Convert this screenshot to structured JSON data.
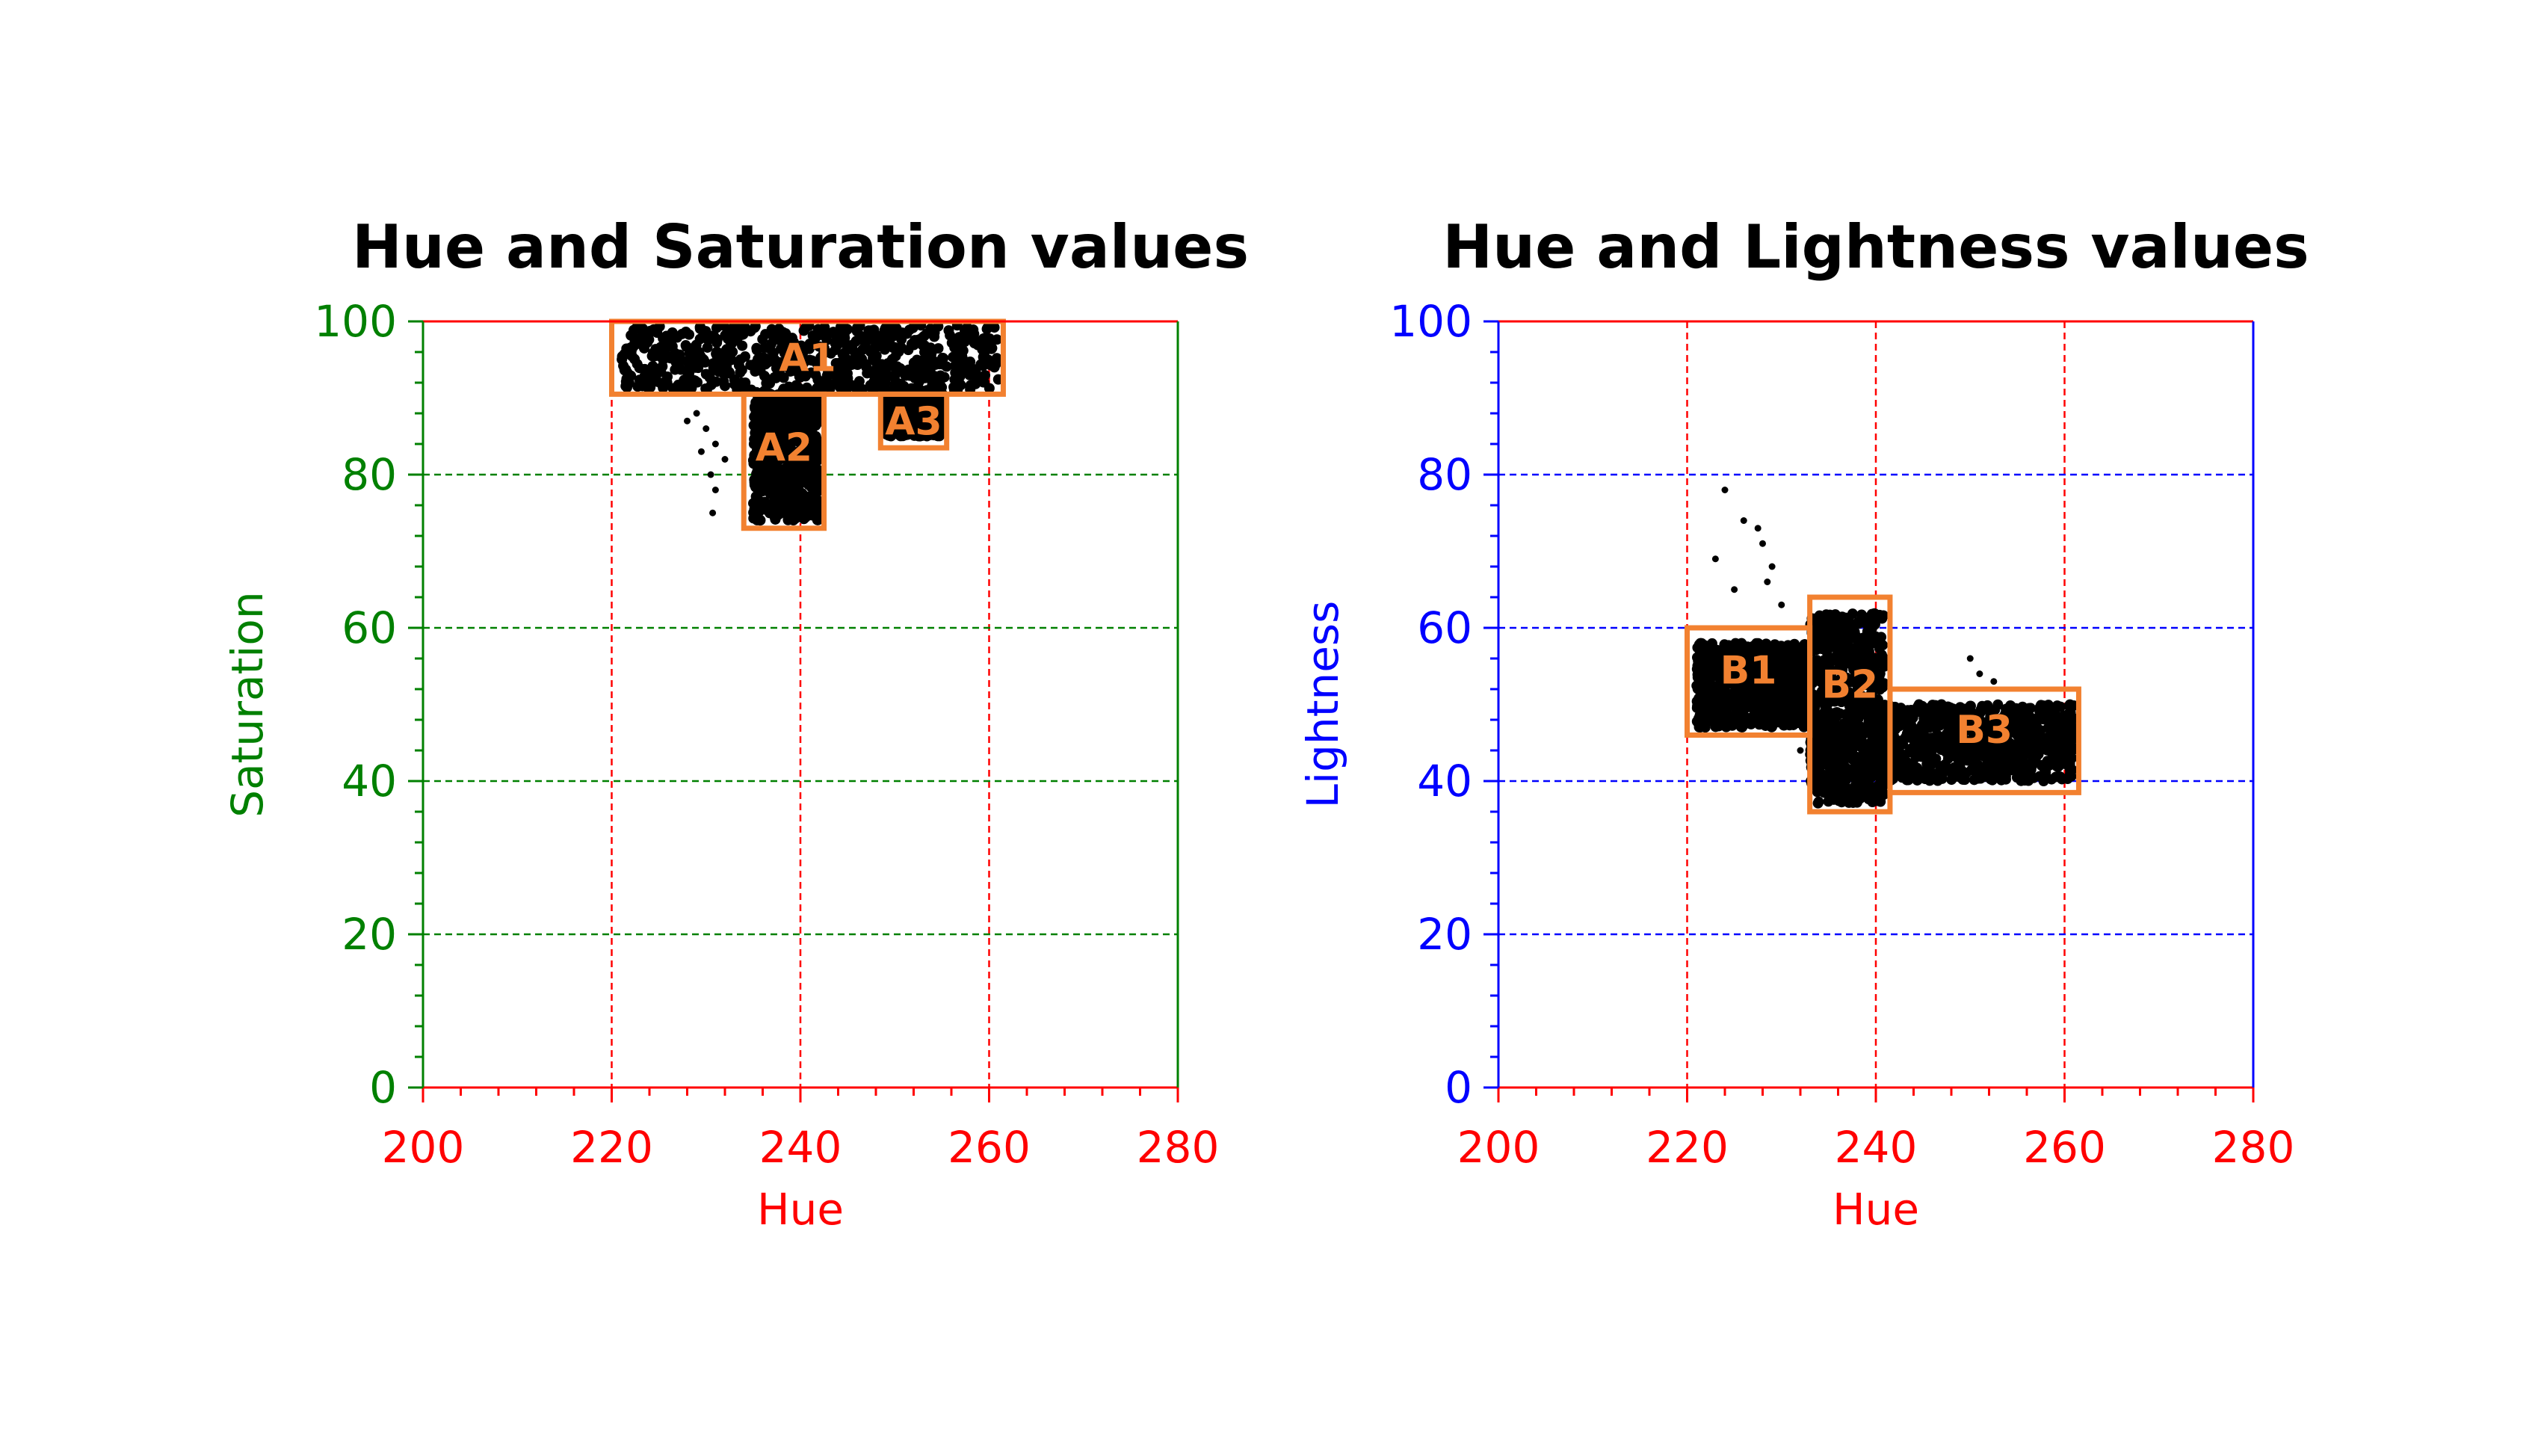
{
  "chart_data": [
    {
      "type": "scatter",
      "title": "Hue and Saturation values",
      "xlabel": "Hue",
      "ylabel": "Saturation",
      "xlim": [
        200,
        280
      ],
      "ylim": [
        0,
        100
      ],
      "xticks": [
        "200",
        "220",
        "240",
        "260",
        "280"
      ],
      "yticks": [
        "0",
        "20",
        "40",
        "60",
        "80",
        "100"
      ],
      "grid": true,
      "colors": {
        "x_axis": "#ff0000",
        "y_axis": "#008000",
        "points": "#000000",
        "boxes": "#f28130"
      },
      "clusters": [
        {
          "hue_range": [
            221,
            261
          ],
          "value_range": [
            91,
            99.5
          ]
        },
        {
          "hue_range": [
            235,
            242
          ],
          "value_range": [
            74,
            91
          ]
        },
        {
          "hue_range": [
            249,
            255
          ],
          "value_range": [
            85,
            91
          ]
        }
      ],
      "outliers": [
        {
          "hue": 229,
          "value": 88
        },
        {
          "hue": 230,
          "value": 86
        },
        {
          "hue": 231,
          "value": 84
        },
        {
          "hue": 230.5,
          "value": 80
        },
        {
          "hue": 231,
          "value": 78
        },
        {
          "hue": 230.7,
          "value": 75
        },
        {
          "hue": 228,
          "value": 87
        },
        {
          "hue": 232,
          "value": 82
        },
        {
          "hue": 229.5,
          "value": 83
        }
      ],
      "regions": [
        {
          "label": "A1",
          "hue": [
            220,
            261.5
          ],
          "value": [
            90.5,
            100
          ]
        },
        {
          "label": "A2",
          "hue": [
            234,
            242.5
          ],
          "value": [
            73,
            90.5
          ]
        },
        {
          "label": "A3",
          "hue": [
            248.5,
            255.5
          ],
          "value": [
            83.5,
            90.5
          ]
        }
      ]
    },
    {
      "type": "scatter",
      "title": "Hue and Lightness values",
      "xlabel": "Hue",
      "ylabel": "Lightness",
      "xlim": [
        200,
        280
      ],
      "ylim": [
        0,
        100
      ],
      "xticks": [
        "200",
        "220",
        "240",
        "260",
        "280"
      ],
      "yticks": [
        "0",
        "20",
        "40",
        "60",
        "80",
        "100"
      ],
      "grid": true,
      "colors": {
        "x_axis": "#ff0000",
        "y_axis": "#0000ff",
        "points": "#000000",
        "boxes": "#f28130"
      },
      "clusters": [
        {
          "hue_range": [
            221,
            233
          ],
          "value_range": [
            47,
            58
          ]
        },
        {
          "hue_range": [
            233,
            241
          ],
          "value_range": [
            37,
            62
          ]
        },
        {
          "hue_range": [
            241,
            261
          ],
          "value_range": [
            40,
            50
          ]
        }
      ],
      "outliers": [
        {
          "hue": 224,
          "value": 78
        },
        {
          "hue": 226,
          "value": 74
        },
        {
          "hue": 227.5,
          "value": 73
        },
        {
          "hue": 228,
          "value": 71
        },
        {
          "hue": 229,
          "value": 68
        },
        {
          "hue": 228.5,
          "value": 66
        },
        {
          "hue": 223,
          "value": 69
        },
        {
          "hue": 225,
          "value": 65
        },
        {
          "hue": 230,
          "value": 63
        },
        {
          "hue": 250,
          "value": 56
        },
        {
          "hue": 251,
          "value": 54
        },
        {
          "hue": 252.5,
          "value": 53
        },
        {
          "hue": 232,
          "value": 44
        }
      ],
      "regions": [
        {
          "label": "B1",
          "hue": [
            220,
            233
          ],
          "value": [
            46,
            60
          ]
        },
        {
          "label": "B2",
          "hue": [
            233,
            241.5
          ],
          "value": [
            36,
            64
          ]
        },
        {
          "label": "B3",
          "hue": [
            241.5,
            261.5
          ],
          "value": [
            38.5,
            52
          ]
        }
      ]
    }
  ]
}
